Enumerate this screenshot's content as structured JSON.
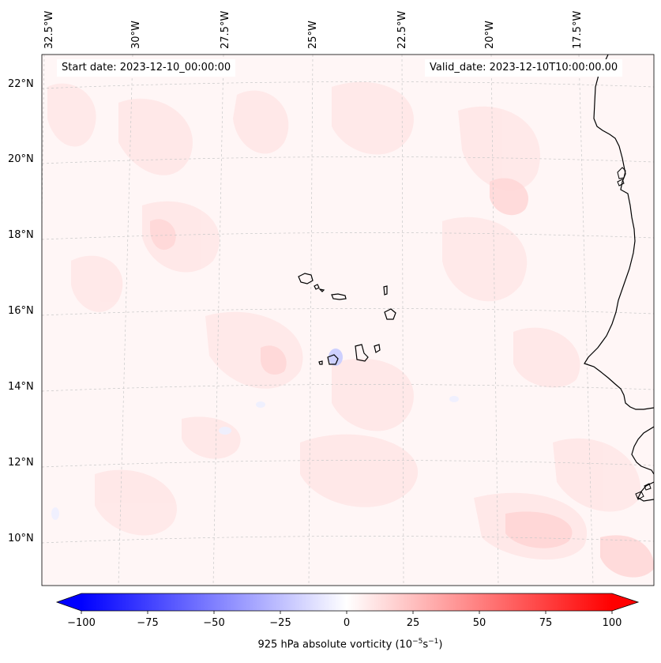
{
  "map": {
    "start_date_text": "Start date: 2023-12-10_00:00:00",
    "valid_date_text": "Valid_date: 2023-12-10T10:00:00.00",
    "projection": "conic",
    "lon_labels": [
      "32.5°W",
      "30°W",
      "27.5°W",
      "25°W",
      "22.5°W",
      "20°W",
      "17.5°W"
    ],
    "lat_labels": [
      "22°N",
      "20°N",
      "18°N",
      "16°N",
      "14°N",
      "12°N",
      "10°N"
    ],
    "colorbar": {
      "min": -100,
      "max": 100,
      "tick_labels": [
        "−100",
        "−75",
        "−50",
        "−25",
        "0",
        "25",
        "50",
        "75",
        "100"
      ],
      "label": "925 hPa absolute vorticity (10",
      "label_exp1": "−5",
      "label_mid": "s",
      "label_exp2": "−1",
      "label_end": ")",
      "colors": {
        "low": "#0000ff",
        "mid": "#ffffff",
        "high": "#ff0000"
      }
    },
    "features": [
      "cape-verde-islands",
      "west-africa-coastline"
    ]
  }
}
